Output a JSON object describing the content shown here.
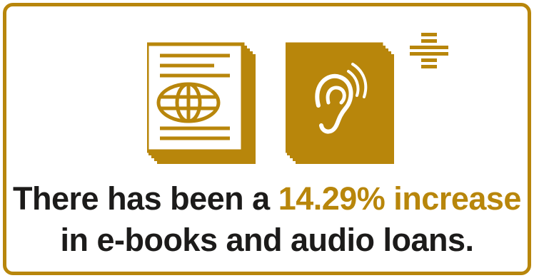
{
  "colors": {
    "accent": "#b8860b",
    "text": "#1c1b1a",
    "background": "#ffffff"
  },
  "icons": [
    "ebook-globe-icon",
    "audiobook-ear-icon",
    "plus-icon"
  ],
  "stat": {
    "line1_prefix": "There has been a ",
    "highlight": "14.29% increase",
    "line2": "in e-books and audio loans."
  }
}
